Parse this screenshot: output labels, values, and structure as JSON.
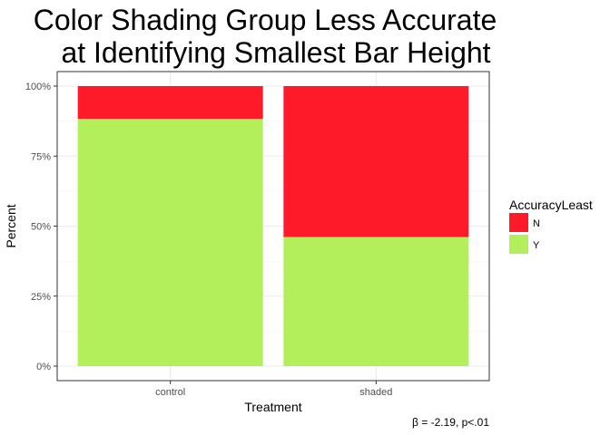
{
  "chart_data": {
    "type": "bar",
    "stacked": true,
    "title": "Color Shading Group Less Accurate at Identifying Smallest Bar Height",
    "title_lines": [
      "Color Shading Group Less Accurate",
      "at Identifying Smallest Bar Height"
    ],
    "xlabel": "Treatment",
    "ylabel": "Percent",
    "categories": [
      "control",
      "shaded"
    ],
    "series": [
      {
        "name": "Y",
        "values": [
          88.3,
          46.1
        ],
        "color": "#b2ef5b"
      },
      {
        "name": "N",
        "values": [
          11.7,
          53.9
        ],
        "color": "#ff1a2a"
      }
    ],
    "ylim": [
      0,
      100
    ],
    "yticks": [
      0,
      25,
      50,
      75,
      100
    ],
    "ytick_labels": [
      "0%",
      "25%",
      "50%",
      "75%",
      "100%"
    ],
    "legend": {
      "title": "AccuracyLeast",
      "position": "right",
      "entries": [
        {
          "label": "N",
          "color": "#ff1a2a"
        },
        {
          "label": "Y",
          "color": "#b2ef5b"
        }
      ]
    },
    "caption": "β = -2.19, p<.01",
    "grid": true,
    "theme": "bw"
  }
}
